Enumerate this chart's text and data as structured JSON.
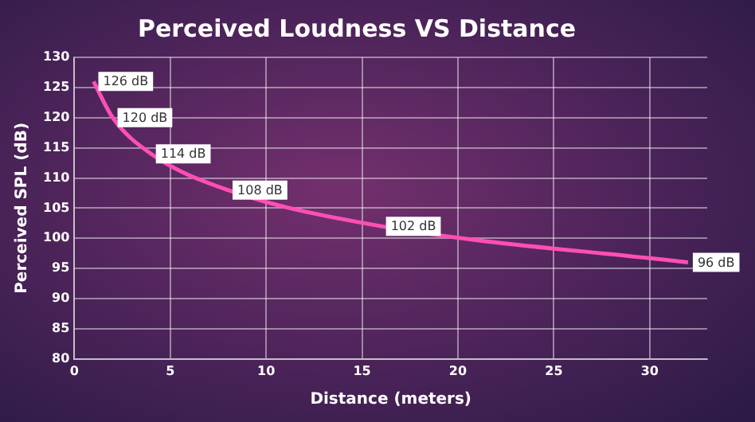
{
  "chart_data": {
    "type": "line",
    "title": "Perceived Loudness VS Distance",
    "xlabel": "Distance (meters)",
    "ylabel": "Perceived SPL (dB)",
    "x": [
      1,
      2,
      4,
      8,
      16,
      32
    ],
    "series": [
      {
        "color": "#ff4fb4",
        "values": [
          126,
          120,
          114,
          108,
          102,
          96
        ],
        "value_labels": [
          "126 dB",
          "120 dB",
          "114 dB",
          "108 dB",
          "102 dB",
          "96 dB"
        ]
      }
    ],
    "xlim": [
      0,
      33
    ],
    "xticks": [
      0,
      5,
      10,
      15,
      20,
      25,
      30
    ],
    "ylim": [
      80,
      130
    ],
    "yticks": [
      80,
      85,
      90,
      95,
      100,
      105,
      110,
      115,
      120,
      125,
      130
    ],
    "grid": true,
    "legend": false,
    "marker": "none",
    "line_style": "solid"
  }
}
